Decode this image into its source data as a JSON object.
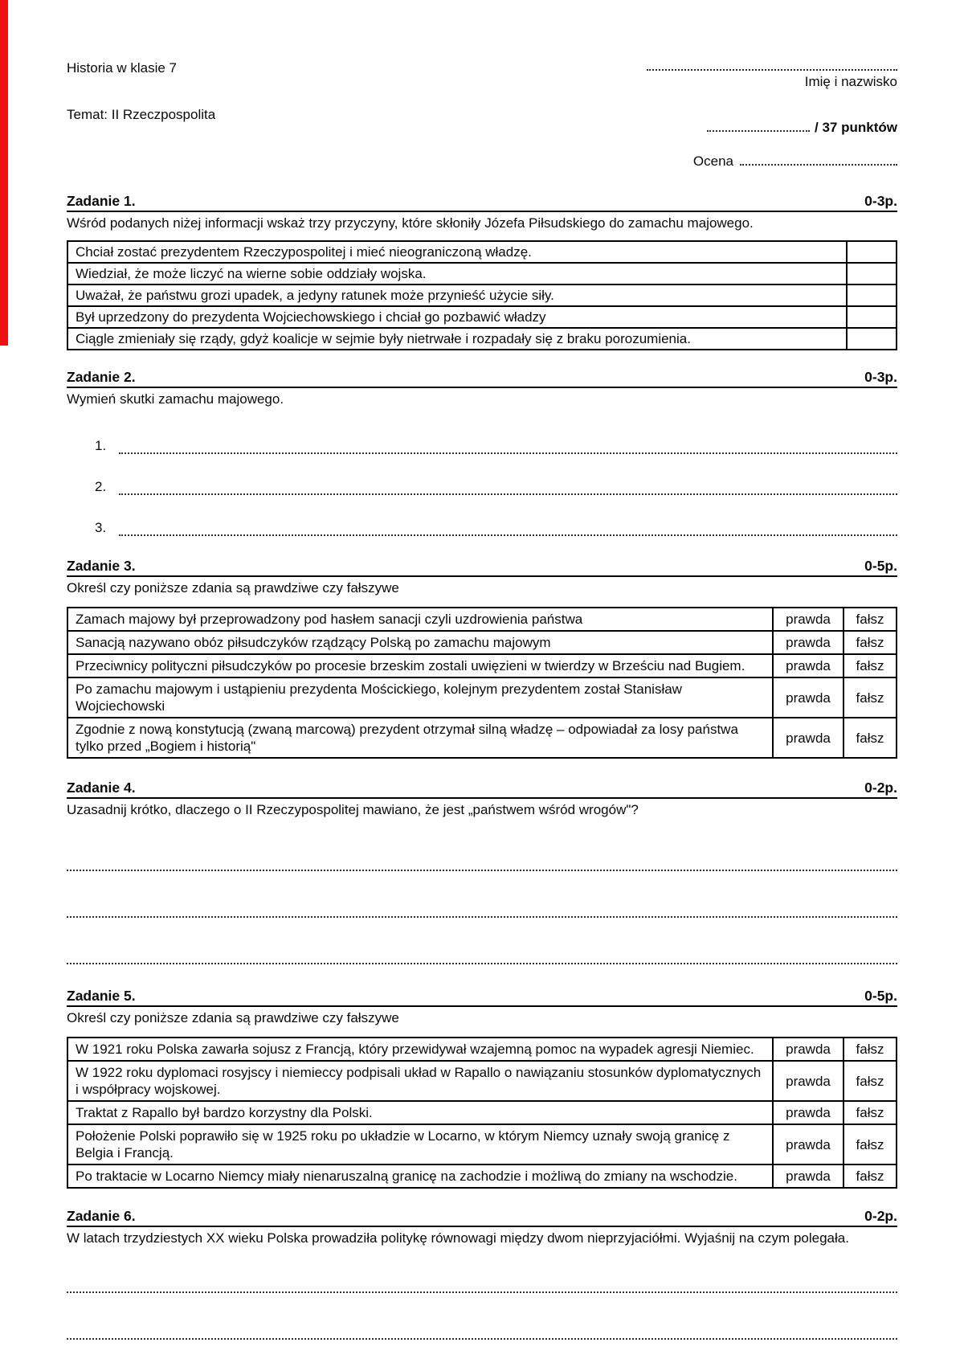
{
  "page": {
    "red_bar_color": "#ee1111",
    "course": "Historia w klasie 7",
    "name_label": "Imię i nazwisko",
    "topic": "Temat: II Rzeczpospolita",
    "points_total": "/ 37 punktów",
    "grade_label": "Ocena"
  },
  "tasks": [
    {
      "title": "Zadanie 1.",
      "points": "0-3p.",
      "instruction": "Wśród podanych niżej informacji wskaż trzy przyczyny, które skłoniły Józefa Piłsudskiego do zamachu majowego.",
      "options": [
        "Chciał zostać prezydentem Rzeczypospolitej i mieć nieograniczoną władzę.",
        "Wiedział, że może liczyć na wierne sobie oddziały wojska.",
        "Uważał, że państwu grozi upadek, a jedyny ratunek może przynieść użycie siły.",
        "Był uprzedzony do prezydenta Wojciechowskiego i chciał go pozbawić władzy",
        "Ciągle zmieniały się rządy, gdyż koalicje w sejmie były nietrwałe i rozpadały się z braku porozumienia."
      ]
    },
    {
      "title": "Zadanie 2.",
      "points": "0-3p.",
      "instruction": "Wymień skutki zamachu majowego.",
      "numbers": [
        "1.",
        "2.",
        "3."
      ]
    },
    {
      "title": "Zadanie 3.",
      "points": "0-5p.",
      "instruction": "Określ czy poniższe zdania są prawdziwe czy fałszywe",
      "true_label": "prawda",
      "false_label": "fałsz",
      "statements": [
        "Zamach majowy był przeprowadzony pod hasłem sanacji czyli uzdrowienia państwa",
        "Sanacją nazywano obóz piłsudczyków rządzący Polską po zamachu majowym",
        "Przeciwnicy polityczni piłsudczyków po procesie brzeskim zostali uwięzieni w twierdzy w Brześciu nad Bugiem.",
        "Po zamachu majowym i ustąpieniu prezydenta Mościckiego, kolejnym prezydentem został Stanisław Wojciechowski",
        "Zgodnie z nową konstytucją (zwaną marcową) prezydent otrzymał silną władzę – odpowiadał za losy państwa tylko przed „Bogiem i historią\""
      ]
    },
    {
      "title": "Zadanie 4.",
      "points": "0-2p.",
      "instruction": "Uzasadnij krótko, dlaczego o II Rzeczypospolitej mawiano, że jest „państwem wśród wrogów\"?"
    },
    {
      "title": "Zadanie 5.",
      "points": "0-5p.",
      "instruction": "Określ czy poniższe zdania są prawdziwe czy fałszywe",
      "true_label": "prawda",
      "false_label": "fałsz",
      "statements": [
        "W 1921 roku Polska zawarła sojusz z Francją, który przewidywał wzajemną pomoc na wypadek agresji Niemiec.",
        "W 1922 roku dyplomaci rosyjscy i niemieccy podpisali układ w Rapallo o nawiązaniu stosunków dyplomatycznych i współpracy wojskowej.",
        "Traktat z Rapallo był bardzo korzystny dla Polski.",
        "Położenie Polski poprawiło się w 1925 roku po układzie w Locarno, w którym Niemcy uznały swoją granicę z Belgia i Francją.",
        "Po traktacie w Locarno Niemcy miały nienaruszalną granicę na zachodzie i możliwą do zmiany na wschodzie."
      ]
    },
    {
      "title": "Zadanie 6.",
      "points": "0-2p.",
      "instruction": "W latach trzydziestych XX wieku Polska prowadziła politykę równowagi między dwom nieprzyjaciółmi. Wyjaśnij na czym polegała."
    }
  ]
}
